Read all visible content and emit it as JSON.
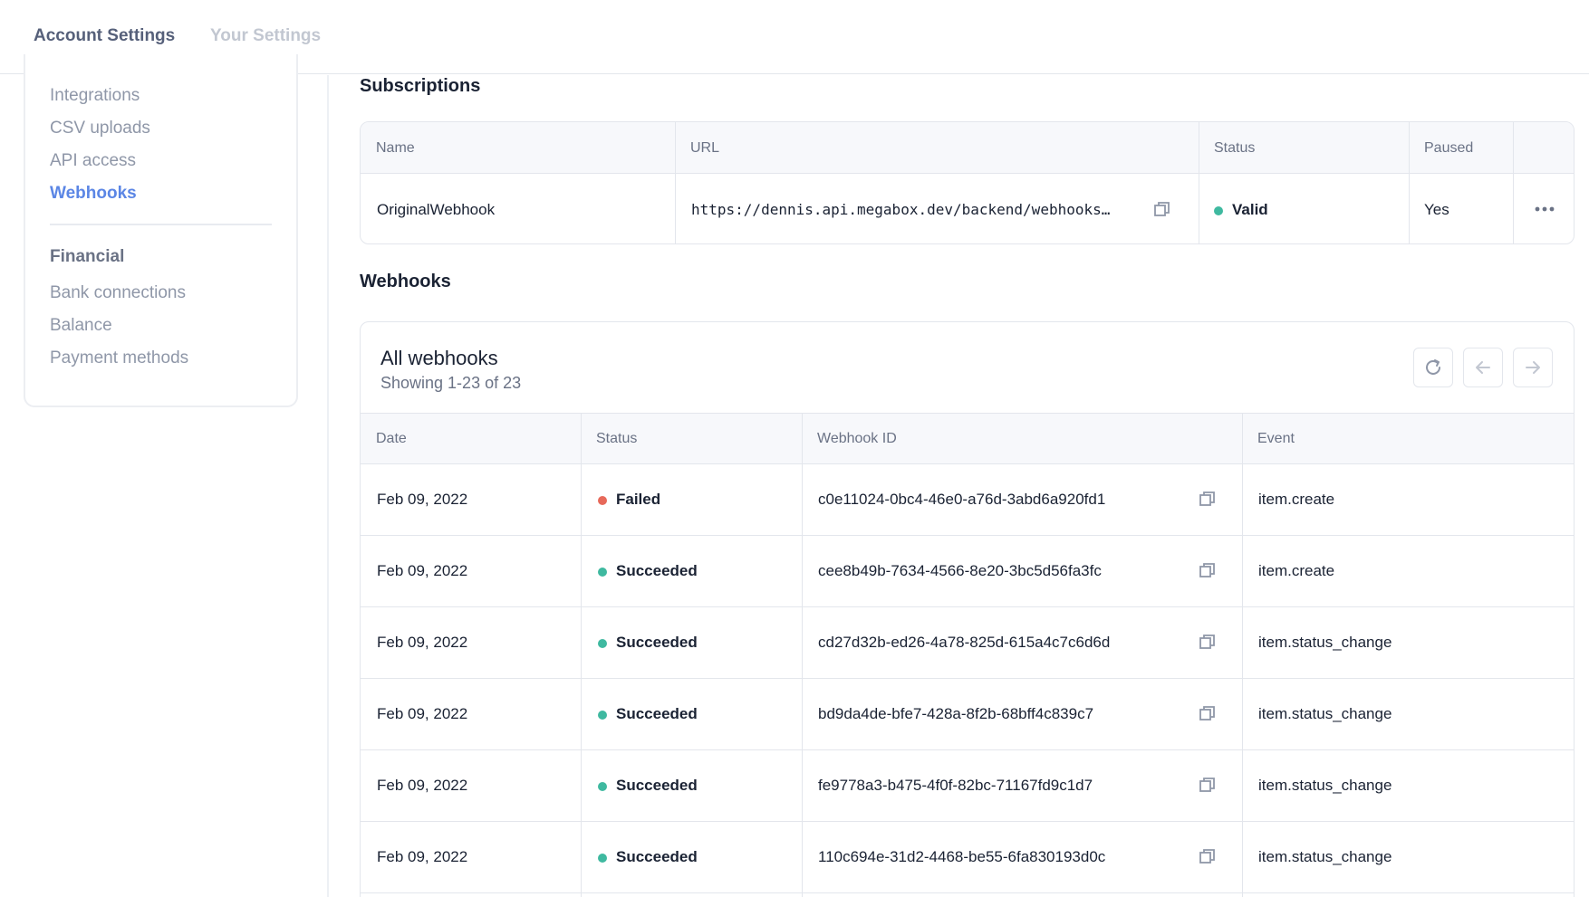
{
  "tabs": {
    "account_settings": "Account Settings",
    "your_settings": "Your Settings"
  },
  "sidebar": {
    "items": [
      {
        "label": "Integrations"
      },
      {
        "label": "CSV uploads"
      },
      {
        "label": "API access"
      },
      {
        "label": "Webhooks"
      }
    ],
    "financial_heading": "Financial",
    "financial_items": [
      {
        "label": "Bank connections"
      },
      {
        "label": "Balance"
      },
      {
        "label": "Payment methods"
      }
    ]
  },
  "subscriptions": {
    "title": "Subscriptions",
    "headers": {
      "name": "Name",
      "url": "URL",
      "status": "Status",
      "paused": "Paused"
    },
    "row": {
      "name": "OriginalWebhook",
      "url": "https://dennis.api.megabox.dev/backend/webhooks…",
      "status": "Valid",
      "paused": "Yes"
    }
  },
  "webhooks": {
    "section_title": "Webhooks",
    "card_title": "All webhooks",
    "showing": "Showing 1-23 of 23",
    "headers": {
      "date": "Date",
      "status": "Status",
      "webhook_id": "Webhook ID",
      "event": "Event"
    },
    "rows": [
      {
        "date": "Feb 09, 2022",
        "status": "Failed",
        "id": "c0e11024-0bc4-46e0-a76d-3abd6a920fd1",
        "event": "item.create"
      },
      {
        "date": "Feb 09, 2022",
        "status": "Succeeded",
        "id": "cee8b49b-7634-4566-8e20-3bc5d56fa3fc",
        "event": "item.create"
      },
      {
        "date": "Feb 09, 2022",
        "status": "Succeeded",
        "id": "cd27d32b-ed26-4a78-825d-615a4c7c6d6d",
        "event": "item.status_change"
      },
      {
        "date": "Feb 09, 2022",
        "status": "Succeeded",
        "id": "bd9da4de-bfe7-428a-8f2b-68bff4c839c7",
        "event": "item.status_change"
      },
      {
        "date": "Feb 09, 2022",
        "status": "Succeeded",
        "id": "fe9778a3-b475-4f0f-82bc-71167fd9c1d7",
        "event": "item.status_change"
      },
      {
        "date": "Feb 09, 2022",
        "status": "Succeeded",
        "id": "110c694e-31d2-4468-be55-6fa830193d0c",
        "event": "item.status_change"
      }
    ]
  },
  "colors": {
    "accent": "#5b86e5",
    "success": "#3fb9a0",
    "failure": "#e7695a"
  }
}
